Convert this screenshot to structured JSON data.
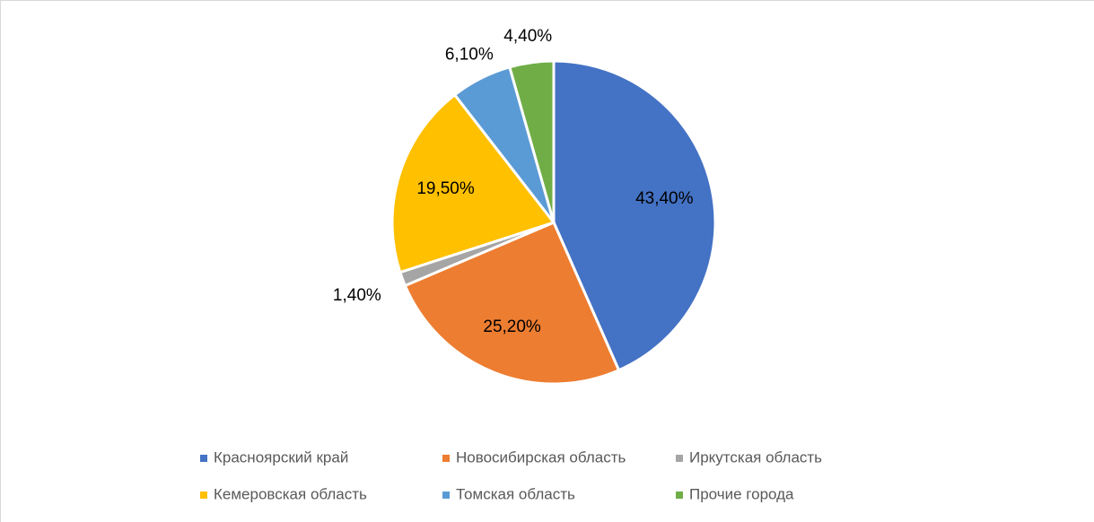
{
  "chart_data": {
    "type": "pie",
    "categories": [
      "Красноярский край",
      "Новосибирская область",
      "Иркутская область",
      "Кемеровская область",
      "Томская область",
      "Прочие города"
    ],
    "values": [
      43.4,
      25.2,
      1.4,
      19.5,
      6.1,
      4.4
    ],
    "value_labels": [
      "43,40%",
      "25,20%",
      "1,40%",
      "19,50%",
      "6,10%",
      "4,40%"
    ],
    "colors": [
      "#4472c4",
      "#ed7d31",
      "#a5a5a5",
      "#ffc000",
      "#5b9bd5",
      "#70ad47"
    ],
    "legend": "bottom"
  }
}
